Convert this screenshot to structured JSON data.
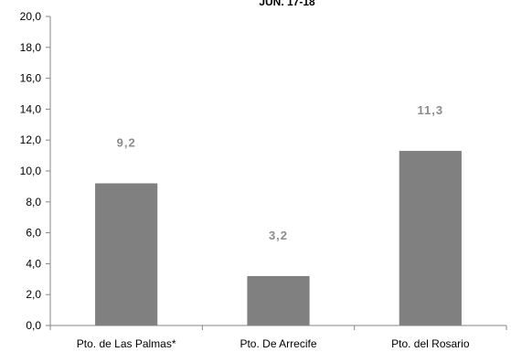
{
  "chart_data": {
    "type": "bar",
    "title": "JUN. 17-18",
    "categories": [
      "Pto. de Las Palmas*",
      "Pto. De Arrecife",
      "Pto. del Rosario"
    ],
    "values": [
      9.2,
      3.2,
      11.3
    ],
    "value_labels": [
      "9,2",
      "3,2",
      "11,3"
    ],
    "ylim": [
      0,
      20
    ],
    "yticks": [
      0,
      2,
      4,
      6,
      8,
      10,
      12,
      14,
      16,
      18,
      20
    ],
    "ytick_labels": [
      "0,0",
      "2,0",
      "4,0",
      "6,0",
      "8,0",
      "10,0",
      "12,0",
      "14,0",
      "16,0",
      "18,0",
      "20,0"
    ],
    "xlabel": "",
    "ylabel": "",
    "grid": false,
    "bar_color": "#808080",
    "label_color": "#8c8c8c"
  }
}
